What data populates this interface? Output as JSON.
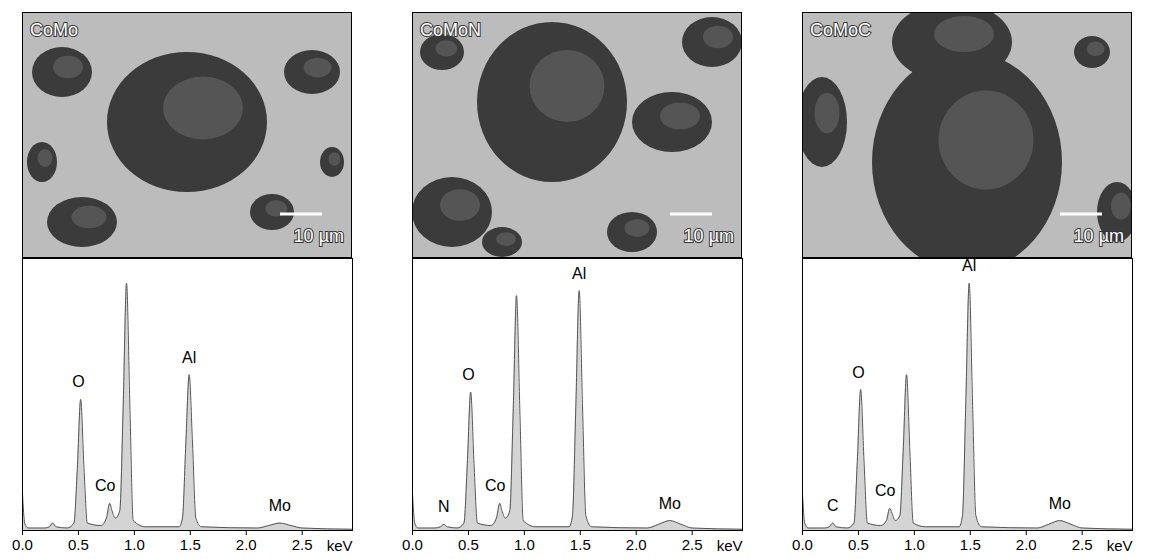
{
  "chart_data": [
    {
      "type": "area",
      "title": "CoMo",
      "scale_bar": "10 µm",
      "x_label": "keV",
      "x": [
        0.0,
        0.02,
        0.05,
        0.1,
        0.2,
        0.24,
        0.27,
        0.3,
        0.4,
        0.46,
        0.49,
        0.52,
        0.55,
        0.58,
        0.7,
        0.75,
        0.78,
        0.8,
        0.83,
        0.87,
        0.9,
        0.93,
        0.96,
        0.99,
        1.1,
        1.4,
        1.43,
        1.46,
        1.49,
        1.52,
        1.55,
        1.6,
        2.1,
        2.2,
        2.3,
        2.4,
        2.5,
        2.95
      ],
      "values": [
        15,
        3,
        1,
        1,
        1,
        1.5,
        3,
        1.5,
        1,
        3,
        25,
        53,
        25,
        3,
        2,
        5,
        11,
        8,
        5,
        8,
        50,
        100,
        50,
        4,
        1.5,
        1.5,
        5,
        35,
        63,
        35,
        5,
        1.5,
        1,
        2,
        3,
        2,
        1,
        0.5
      ],
      "color": "#d4d4d4",
      "xlim": [
        0,
        2.95
      ],
      "xticks": [
        {
          "value": 0,
          "label": "0.0"
        },
        {
          "value": 0.5,
          "label": "0.5"
        },
        {
          "value": 1,
          "label": "1.0"
        },
        {
          "value": 1.5,
          "label": "1.5"
        },
        {
          "value": 2,
          "label": "2.0"
        },
        {
          "value": 2.5,
          "label": "2.5"
        }
      ],
      "ylim": [
        0,
        110
      ],
      "tick_labels": "x",
      "annotations": [
        {
          "text": "O",
          "x": 0.5,
          "y": 53
        },
        {
          "text": "Co",
          "x": 0.74,
          "y": 11
        },
        {
          "text": "Al",
          "x": 1.49,
          "y": 63
        },
        {
          "text": "Mo",
          "x": 2.3,
          "y": 3
        }
      ]
    },
    {
      "type": "area",
      "title": "CoMoN",
      "scale_bar": "10 µm",
      "x_label": "keV",
      "x": [
        0.0,
        0.02,
        0.05,
        0.1,
        0.2,
        0.25,
        0.28,
        0.31,
        0.4,
        0.46,
        0.49,
        0.52,
        0.55,
        0.58,
        0.7,
        0.75,
        0.78,
        0.8,
        0.83,
        0.87,
        0.9,
        0.93,
        0.96,
        0.99,
        1.1,
        1.4,
        1.43,
        1.46,
        1.49,
        1.52,
        1.55,
        1.6,
        2.1,
        2.2,
        2.3,
        2.4,
        2.5,
        2.95
      ],
      "values": [
        15,
        3,
        1,
        1,
        1,
        1.5,
        2.5,
        1.5,
        1,
        3,
        27,
        56,
        27,
        3,
        2,
        5,
        11,
        8,
        5,
        8,
        48,
        95,
        48,
        4,
        1.5,
        1.5,
        6,
        50,
        97,
        50,
        6,
        1.5,
        1,
        2.5,
        4,
        2.5,
        1,
        0.5
      ],
      "color": "#d4d4d4",
      "xlim": [
        0,
        2.95
      ],
      "xticks": [
        {
          "value": 0,
          "label": "0.0"
        },
        {
          "value": 0.5,
          "label": "0.5"
        },
        {
          "value": 1,
          "label": "1.0"
        },
        {
          "value": 1.5,
          "label": "1.5"
        },
        {
          "value": 2,
          "label": "2.0"
        },
        {
          "value": 2.5,
          "label": "2.5"
        }
      ],
      "ylim": [
        0,
        110
      ],
      "tick_labels": "x",
      "annotations": [
        {
          "text": "N",
          "x": 0.28,
          "y": 2.5
        },
        {
          "text": "O",
          "x": 0.5,
          "y": 56
        },
        {
          "text": "Co",
          "x": 0.74,
          "y": 11
        },
        {
          "text": "Al",
          "x": 1.49,
          "y": 97
        },
        {
          "text": "Mo",
          "x": 2.3,
          "y": 4
        }
      ]
    },
    {
      "type": "area",
      "title": "CoMoC",
      "scale_bar": "10 µm",
      "x_label": "keV",
      "x": [
        0.0,
        0.02,
        0.05,
        0.1,
        0.2,
        0.24,
        0.27,
        0.3,
        0.4,
        0.46,
        0.49,
        0.52,
        0.55,
        0.58,
        0.7,
        0.75,
        0.78,
        0.8,
        0.83,
        0.87,
        0.9,
        0.93,
        0.96,
        0.99,
        1.1,
        1.4,
        1.43,
        1.46,
        1.49,
        1.52,
        1.55,
        1.6,
        2.1,
        2.2,
        2.3,
        2.4,
        2.5,
        2.95
      ],
      "values": [
        15,
        3,
        1,
        1,
        1,
        1.5,
        3,
        1.5,
        1,
        3,
        28,
        57,
        28,
        3,
        2,
        4,
        9,
        7,
        4,
        6,
        32,
        63,
        32,
        3,
        1.5,
        1.5,
        6,
        52,
        100,
        52,
        6,
        1.5,
        1,
        2.5,
        4,
        2.5,
        1,
        0.5
      ],
      "color": "#d4d4d4",
      "xlim": [
        0,
        2.95
      ],
      "xticks": [
        {
          "value": 0,
          "label": "0.0"
        },
        {
          "value": 0.5,
          "label": "0.5"
        },
        {
          "value": 1,
          "label": "1.0"
        },
        {
          "value": 1.5,
          "label": "1.5"
        },
        {
          "value": 2,
          "label": "2.0"
        },
        {
          "value": 2.5,
          "label": "2.5"
        }
      ],
      "ylim": [
        0,
        110
      ],
      "tick_labels": "x",
      "annotations": [
        {
          "text": "C",
          "x": 0.27,
          "y": 3
        },
        {
          "text": "O",
          "x": 0.5,
          "y": 57
        },
        {
          "text": "Co",
          "x": 0.74,
          "y": 9
        },
        {
          "text": "Al",
          "x": 1.49,
          "y": 100
        },
        {
          "text": "Mo",
          "x": 2.3,
          "y": 4
        }
      ]
    }
  ]
}
